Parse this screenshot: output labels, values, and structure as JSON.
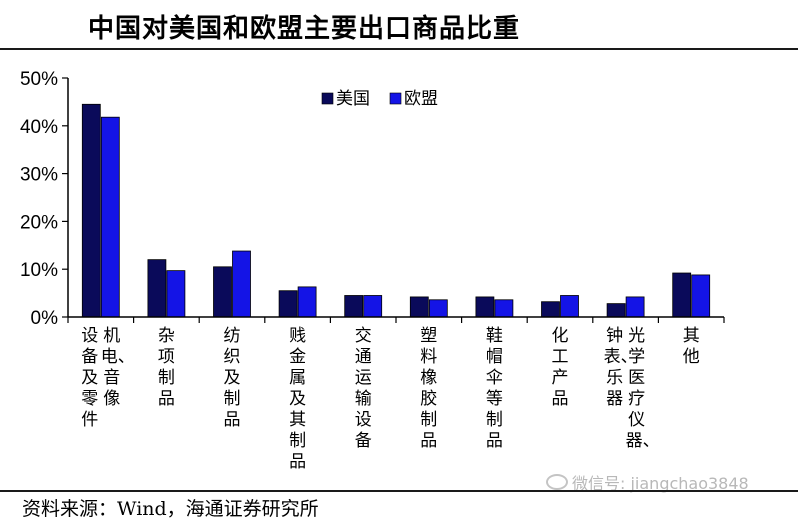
{
  "title": "中国对美国和欧盟主要出口商品比重",
  "source": "资料来源：Wind，海通证券研究所",
  "watermark": {
    "icon": "wechat-icon",
    "text": "微信号: jiangchao3848"
  },
  "chart_data": {
    "type": "bar",
    "title": "",
    "xlabel": "",
    "ylabel": "",
    "ylim": [
      0,
      0.5
    ],
    "yticks": [
      0,
      0.1,
      0.2,
      0.3,
      0.4,
      0.5
    ],
    "ytick_labels": [
      "0%",
      "10%",
      "20%",
      "30%",
      "40%",
      "50%"
    ],
    "grid": false,
    "legend": "top-center",
    "category_columns": [
      [
        "机电、音像",
        "设备及零件"
      ],
      [
        "杂项制品"
      ],
      [
        "纺织及制品"
      ],
      [
        "贱金属及其制品"
      ],
      [
        "交通运输设备"
      ],
      [
        "塑料橡胶制品"
      ],
      [
        "鞋帽伞等制品"
      ],
      [
        "化工产品"
      ],
      [
        "光学医疗仪器、",
        "钟表、乐器"
      ],
      [
        "其他"
      ]
    ],
    "series": [
      {
        "name": "美国",
        "color": "#0a0a5a",
        "values": [
          0.445,
          0.12,
          0.105,
          0.055,
          0.045,
          0.042,
          0.042,
          0.032,
          0.028,
          0.092
        ]
      },
      {
        "name": "欧盟",
        "color": "#1414e6",
        "values": [
          0.418,
          0.097,
          0.138,
          0.063,
          0.045,
          0.036,
          0.036,
          0.045,
          0.042,
          0.088
        ]
      }
    ]
  }
}
